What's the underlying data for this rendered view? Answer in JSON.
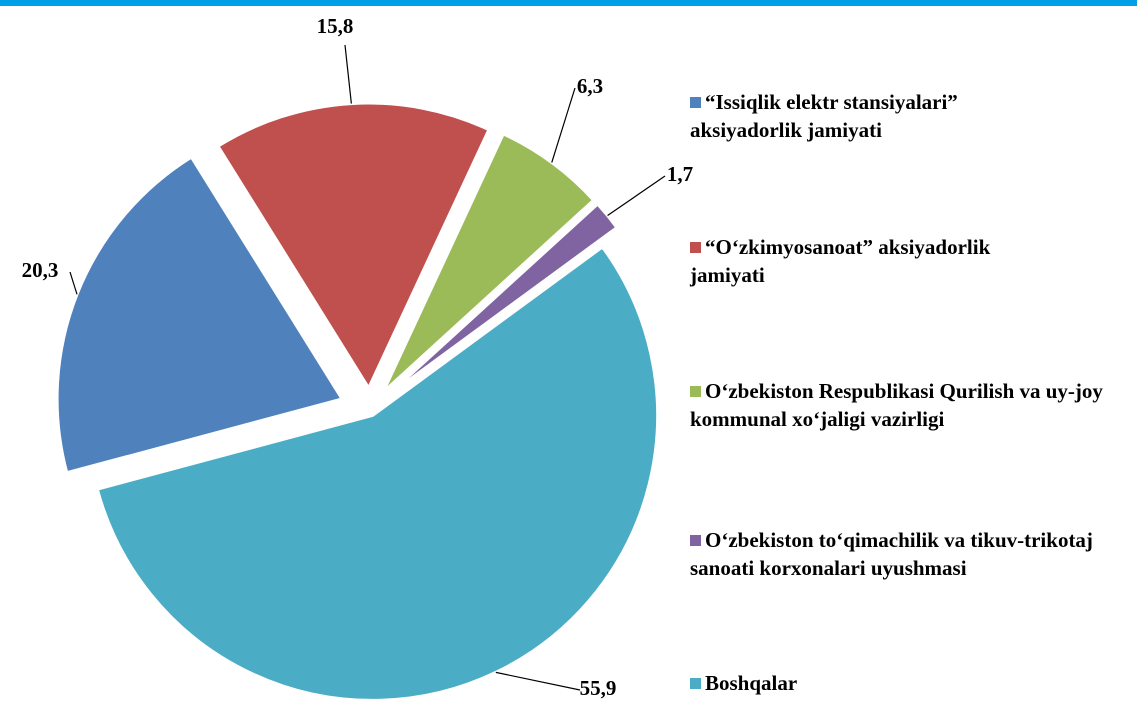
{
  "chart_data": {
    "type": "pie",
    "categories": [
      "“Issiqlik elektr stansiyalari” aksiyadorlik jamiyati",
      "“O‘zkimyosanoat” aksiyadorlik jamiyati",
      "O‘zbekiston Respublikasi Qurilish va uy-joy kommunal xo‘jaligi vazirligi",
      "O‘zbekiston to‘qimachilik va tikuv-trikotaj sanoati korxonalari uyushmasi",
      "Boshqalar"
    ],
    "values": [
      20.3,
      15.8,
      6.3,
      1.7,
      55.9
    ],
    "value_labels": [
      "20,3",
      "15,8",
      "6,3",
      "1,7",
      "55,9"
    ],
    "colors": [
      "#4f81bd",
      "#c0504d",
      "#9bbb59",
      "#8064a2",
      "#4bacc6"
    ],
    "legend": "right"
  }
}
